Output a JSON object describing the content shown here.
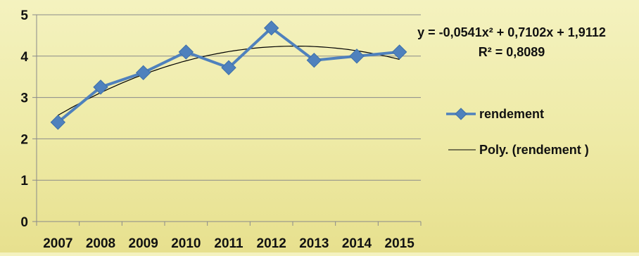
{
  "chart_data": {
    "type": "line",
    "title": "",
    "xlabel": "",
    "ylabel": "",
    "categories": [
      "2007",
      "2008",
      "2009",
      "2010",
      "2011",
      "2012",
      "2013",
      "2014",
      "2015"
    ],
    "series": [
      {
        "name": "rendement",
        "values": [
          2.4,
          3.25,
          3.6,
          4.1,
          3.72,
          4.68,
          3.9,
          4.0,
          4.1
        ],
        "color": "#4f81bd",
        "marker": "diamond"
      }
    ],
    "trendline": {
      "name": "Poly. (rendement )",
      "type": "polynomial",
      "order": 2,
      "coefficients": [
        -0.0541,
        0.7102,
        1.9112
      ],
      "equation_text": "y = -0,0541x² + 0,7102x + 1,9112",
      "r2_text": "R² = 0,8089",
      "color": "#000000"
    },
    "ylim": [
      0,
      5
    ],
    "yticks": [
      "0",
      "1",
      "2",
      "3",
      "4",
      "5"
    ],
    "grid": true,
    "legend_position": "right"
  }
}
